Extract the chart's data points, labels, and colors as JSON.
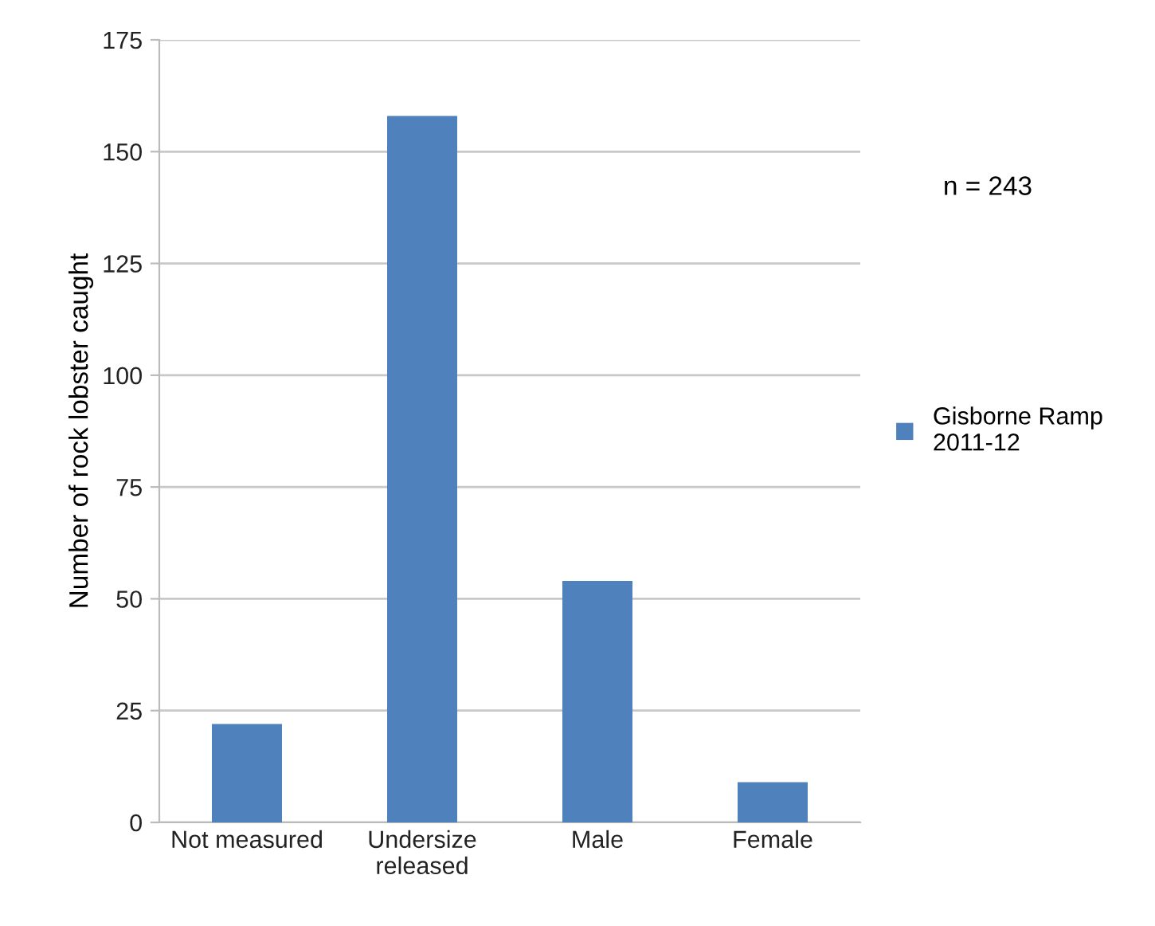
{
  "chart_data": {
    "type": "bar",
    "ylabel": "Number of rock lobster caught",
    "categories": [
      "Not measured",
      "Undersize\nreleased",
      "Male",
      "Female"
    ],
    "series": [
      {
        "name": "Gisborne Ramp\n2011-12",
        "color": "#4f81bd",
        "values": [
          22,
          158,
          54,
          9
        ]
      }
    ],
    "ylim": [
      0,
      175
    ],
    "yticks": [
      0,
      25,
      50,
      75,
      100,
      125,
      150,
      175
    ],
    "grid": "y",
    "legend": "right",
    "annotations": [
      "n = 243"
    ]
  }
}
